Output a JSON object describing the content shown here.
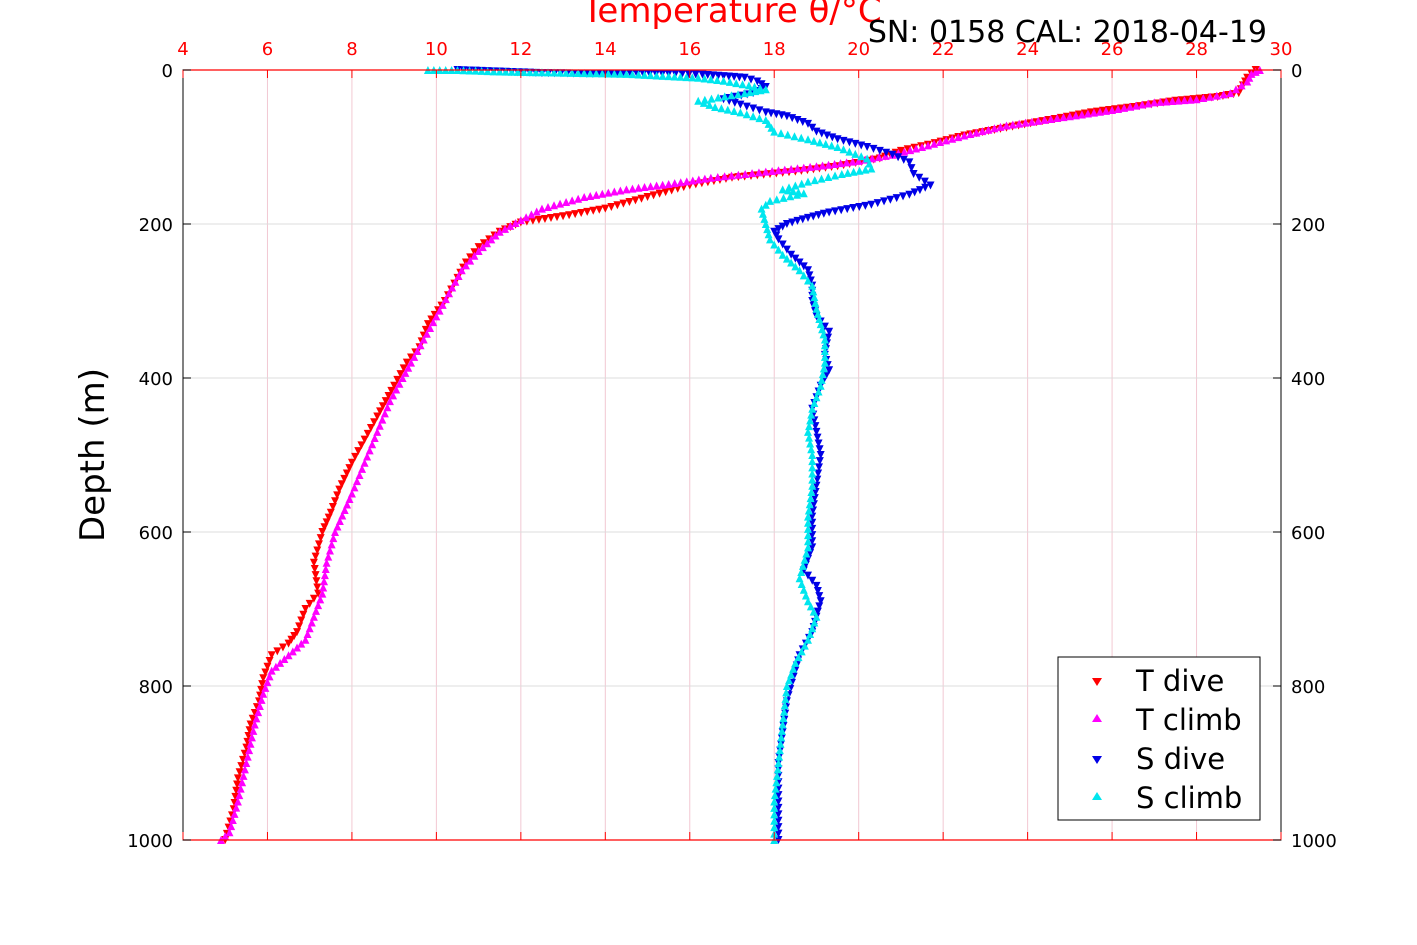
{
  "header": {
    "title": "Temperature θ/°C",
    "subtitle": "SN: 0158  CAL: 2018-04-19"
  },
  "colors": {
    "t_dive": "#ff0000",
    "t_climb": "#ff00ff",
    "s_dive": "#0000e6",
    "s_climb": "#00e6ee",
    "temp_axis": "#ff0000",
    "grid_x": "#f2c8d2",
    "grid_y": "#dcdcdc"
  },
  "chart_data": {
    "type": "scatter",
    "title": "Temperature θ/°C",
    "subtitle": "SN: 0158  CAL: 2018-04-19",
    "xlabel": "Temperature θ/°C",
    "ylabel": "Depth (m)",
    "xlim": [
      4,
      30
    ],
    "ylim": [
      1000,
      0
    ],
    "x_ticks": [
      4,
      6,
      8,
      10,
      12,
      14,
      16,
      18,
      20,
      22,
      24,
      26,
      28,
      30
    ],
    "y_ticks": [
      0,
      200,
      400,
      600,
      800,
      1000
    ],
    "grid": true,
    "legend_position": "bottom-right",
    "legend": [
      "T dive",
      "T climb",
      "S dive",
      "S climb"
    ],
    "series": [
      {
        "name": "T dive",
        "marker": "triangle-down",
        "color": "#ff0000",
        "points": [
          [
            29.4,
            0
          ],
          [
            29.3,
            5
          ],
          [
            29.2,
            10
          ],
          [
            29.1,
            20
          ],
          [
            29.0,
            30
          ],
          [
            28.5,
            35
          ],
          [
            27.5,
            40
          ],
          [
            26.5,
            48
          ],
          [
            25.5,
            55
          ],
          [
            24.5,
            65
          ],
          [
            23.5,
            75
          ],
          [
            22.5,
            85
          ],
          [
            21.8,
            95
          ],
          [
            21.0,
            105
          ],
          [
            20.5,
            115
          ],
          [
            19.5,
            125
          ],
          [
            18.5,
            132
          ],
          [
            17.0,
            140
          ],
          [
            16.0,
            150
          ],
          [
            15.0,
            165
          ],
          [
            14.0,
            180
          ],
          [
            13.0,
            190
          ],
          [
            12.0,
            198
          ],
          [
            11.5,
            210
          ],
          [
            11.0,
            230
          ],
          [
            10.7,
            250
          ],
          [
            10.5,
            270
          ],
          [
            10.2,
            300
          ],
          [
            9.8,
            330
          ],
          [
            9.6,
            360
          ],
          [
            9.3,
            380
          ],
          [
            9.0,
            410
          ],
          [
            8.6,
            450
          ],
          [
            8.3,
            480
          ],
          [
            8.0,
            510
          ],
          [
            7.7,
            545
          ],
          [
            7.5,
            575
          ],
          [
            7.3,
            600
          ],
          [
            7.1,
            640
          ],
          [
            7.2,
            680
          ],
          [
            6.9,
            700
          ],
          [
            6.7,
            730
          ],
          [
            6.5,
            745
          ],
          [
            6.1,
            760
          ],
          [
            5.9,
            790
          ],
          [
            5.8,
            820
          ],
          [
            5.6,
            850
          ],
          [
            5.5,
            880
          ],
          [
            5.3,
            920
          ],
          [
            5.2,
            960
          ],
          [
            5.0,
            1000
          ]
        ]
      },
      {
        "name": "T climb",
        "marker": "triangle-up",
        "color": "#ff00ff",
        "points": [
          [
            29.5,
            0
          ],
          [
            29.3,
            5
          ],
          [
            29.2,
            15
          ],
          [
            28.8,
            30
          ],
          [
            28.0,
            38
          ],
          [
            27.0,
            42
          ],
          [
            26.0,
            52
          ],
          [
            25.0,
            60
          ],
          [
            23.5,
            72
          ],
          [
            22.5,
            85
          ],
          [
            21.5,
            100
          ],
          [
            20.8,
            110
          ],
          [
            20.0,
            118
          ],
          [
            19.0,
            125
          ],
          [
            17.8,
            132
          ],
          [
            16.5,
            140
          ],
          [
            15.5,
            148
          ],
          [
            14.5,
            155
          ],
          [
            13.5,
            165
          ],
          [
            12.5,
            180
          ],
          [
            12.0,
            195
          ],
          [
            11.5,
            210
          ],
          [
            11.0,
            235
          ],
          [
            10.6,
            260
          ],
          [
            10.3,
            290
          ],
          [
            10.0,
            320
          ],
          [
            9.7,
            350
          ],
          [
            9.4,
            380
          ],
          [
            9.2,
            400
          ],
          [
            8.9,
            430
          ],
          [
            8.6,
            470
          ],
          [
            8.3,
            510
          ],
          [
            8.0,
            550
          ],
          [
            7.6,
            600
          ],
          [
            7.4,
            640
          ],
          [
            7.3,
            680
          ],
          [
            7.1,
            710
          ],
          [
            6.9,
            740
          ],
          [
            6.5,
            760
          ],
          [
            6.1,
            780
          ],
          [
            5.9,
            810
          ],
          [
            5.7,
            850
          ],
          [
            5.5,
            900
          ],
          [
            5.3,
            950
          ],
          [
            5.1,
            990
          ],
          [
            4.9,
            1000
          ]
        ]
      },
      {
        "name": "S dive",
        "marker": "triangle-down",
        "color": "#0000e6",
        "points": [
          [
            10.5,
            0
          ],
          [
            11.5,
            2
          ],
          [
            12.5,
            4
          ],
          [
            14.0,
            5
          ],
          [
            15.5,
            5
          ],
          [
            16.3,
            6
          ],
          [
            16.8,
            8
          ],
          [
            17.3,
            10
          ],
          [
            17.6,
            15
          ],
          [
            17.8,
            22
          ],
          [
            17.5,
            30
          ],
          [
            16.8,
            38
          ],
          [
            17.2,
            45
          ],
          [
            17.8,
            55
          ],
          [
            18.3,
            60
          ],
          [
            18.8,
            70
          ],
          [
            19.0,
            80
          ],
          [
            19.5,
            90
          ],
          [
            20.2,
            100
          ],
          [
            20.8,
            110
          ],
          [
            21.2,
            120
          ],
          [
            21.3,
            135
          ],
          [
            21.7,
            150
          ],
          [
            21.2,
            162
          ],
          [
            20.3,
            175
          ],
          [
            19.3,
            185
          ],
          [
            18.8,
            192
          ],
          [
            18.3,
            200
          ],
          [
            18.0,
            210
          ],
          [
            18.1,
            220
          ],
          [
            18.4,
            240
          ],
          [
            18.8,
            260
          ],
          [
            18.9,
            280
          ],
          [
            18.9,
            300
          ],
          [
            19.0,
            320
          ],
          [
            19.3,
            340
          ],
          [
            19.2,
            370
          ],
          [
            19.3,
            390
          ],
          [
            19.1,
            410
          ],
          [
            18.9,
            440
          ],
          [
            19.0,
            470
          ],
          [
            19.1,
            500
          ],
          [
            19.0,
            540
          ],
          [
            18.9,
            580
          ],
          [
            18.9,
            620
          ],
          [
            18.7,
            650
          ],
          [
            19.0,
            670
          ],
          [
            19.1,
            690
          ],
          [
            19.0,
            710
          ],
          [
            18.9,
            730
          ],
          [
            18.6,
            760
          ],
          [
            18.5,
            780
          ],
          [
            18.3,
            820
          ],
          [
            18.2,
            860
          ],
          [
            18.1,
            900
          ],
          [
            18.1,
            950
          ],
          [
            18.1,
            1000
          ]
        ]
      },
      {
        "name": "S climb",
        "marker": "triangle-up",
        "color": "#00e6ee",
        "points": [
          [
            9.8,
            0
          ],
          [
            10.5,
            0
          ],
          [
            11.5,
            2
          ],
          [
            12.5,
            3
          ],
          [
            13.5,
            4
          ],
          [
            14.5,
            5
          ],
          [
            15.5,
            8
          ],
          [
            16.2,
            10
          ],
          [
            16.8,
            14
          ],
          [
            17.4,
            20
          ],
          [
            17.8,
            25
          ],
          [
            17.3,
            30
          ],
          [
            16.2,
            40
          ],
          [
            16.6,
            48
          ],
          [
            17.2,
            55
          ],
          [
            17.8,
            65
          ],
          [
            18.0,
            80
          ],
          [
            18.8,
            90
          ],
          [
            19.5,
            100
          ],
          [
            20.2,
            115
          ],
          [
            20.3,
            128
          ],
          [
            19.6,
            135
          ],
          [
            18.8,
            145
          ],
          [
            18.2,
            155
          ],
          [
            18.7,
            160
          ],
          [
            17.9,
            170
          ],
          [
            17.7,
            180
          ],
          [
            17.8,
            200
          ],
          [
            17.9,
            220
          ],
          [
            18.2,
            240
          ],
          [
            18.6,
            260
          ],
          [
            18.9,
            280
          ],
          [
            19.0,
            310
          ],
          [
            19.1,
            330
          ],
          [
            19.2,
            350
          ],
          [
            19.2,
            380
          ],
          [
            19.1,
            410
          ],
          [
            18.9,
            440
          ],
          [
            18.8,
            470
          ],
          [
            18.9,
            500
          ],
          [
            18.9,
            540
          ],
          [
            18.8,
            580
          ],
          [
            18.8,
            620
          ],
          [
            18.6,
            660
          ],
          [
            18.8,
            690
          ],
          [
            19.0,
            710
          ],
          [
            18.8,
            740
          ],
          [
            18.5,
            770
          ],
          [
            18.3,
            800
          ],
          [
            18.2,
            850
          ],
          [
            18.1,
            900
          ],
          [
            18.0,
            950
          ],
          [
            18.0,
            1000
          ]
        ]
      }
    ]
  }
}
